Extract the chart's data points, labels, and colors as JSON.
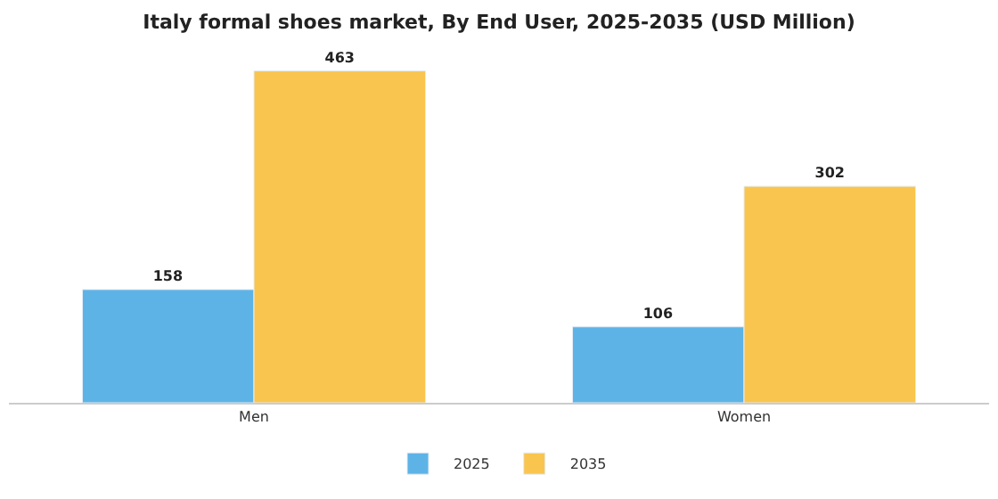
{
  "chart_data": {
    "type": "bar",
    "title": "Italy formal shoes market, By End User, 2025-2035 (USD Million)",
    "categories": [
      "Men",
      "Women"
    ],
    "series": [
      {
        "name": "2025",
        "color": "#5db3e6",
        "values": [
          158,
          106
        ]
      },
      {
        "name": "2035",
        "color": "#f9c54e",
        "values": [
          463,
          302
        ]
      }
    ],
    "data_labels": true,
    "legend": "bottom",
    "tick_labels": "x"
  }
}
